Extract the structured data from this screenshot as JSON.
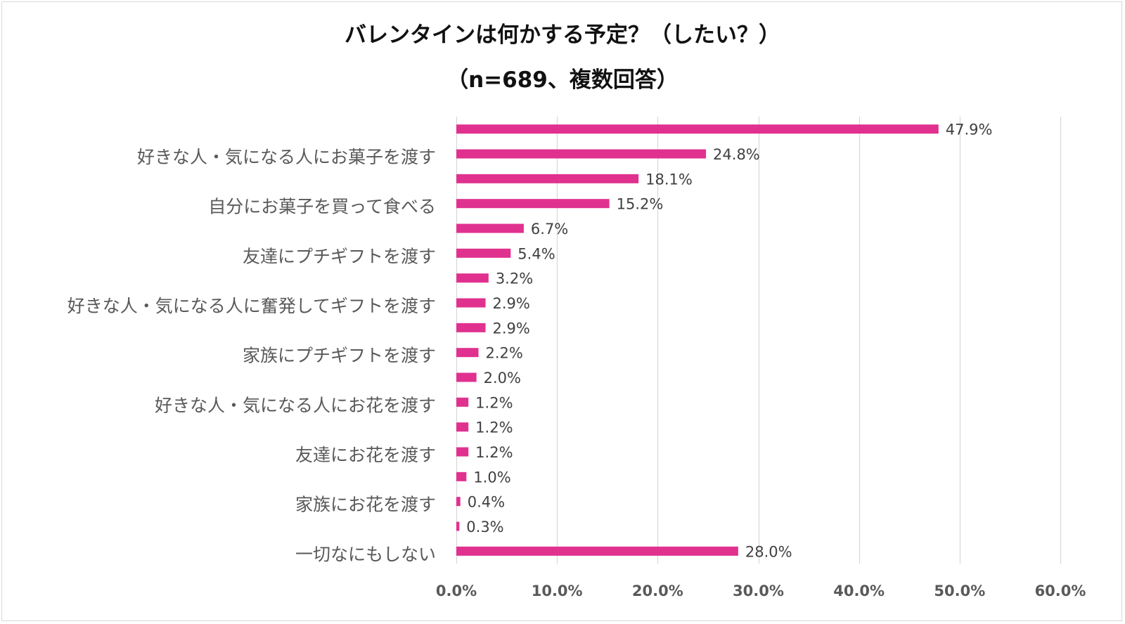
{
  "chart_data": {
    "type": "bar",
    "orientation": "horizontal",
    "title": "バレンタインは何かする予定？（したい？）",
    "subtitle": "（n=689、複数回答）",
    "xlabel": "",
    "ylabel": "",
    "xlim": [
      0,
      60
    ],
    "grid": true,
    "legend": "none",
    "bar_color": "#e0318f",
    "x_ticks": [
      "0.0%",
      "10.0%",
      "20.0%",
      "30.0%",
      "40.0%",
      "50.0%",
      "60.0%"
    ],
    "x_tick_values": [
      0,
      10,
      20,
      30,
      40,
      50,
      60
    ],
    "category_labels_shown": [
      {
        "bar_index": 1,
        "label": "好きな人・気になる人にお菓子を渡す"
      },
      {
        "bar_index": 3,
        "label": "自分にお菓子を買って食べる"
      },
      {
        "bar_index": 5,
        "label": "友達にプチギフトを渡す"
      },
      {
        "bar_index": 7,
        "label": "好きな人・気になる人に奮発してギフトを渡す"
      },
      {
        "bar_index": 9,
        "label": "家族にプチギフトを渡す"
      },
      {
        "bar_index": 11,
        "label": "好きな人・気になる人にお花を渡す"
      },
      {
        "bar_index": 13,
        "label": "友達にお花を渡す"
      },
      {
        "bar_index": 15,
        "label": "家族にお花を渡す"
      },
      {
        "bar_index": 17,
        "label": "一切なにもしない"
      }
    ],
    "values": [
      47.9,
      24.8,
      18.1,
      15.2,
      6.7,
      5.4,
      3.2,
      2.9,
      2.9,
      2.2,
      2.0,
      1.2,
      1.2,
      1.2,
      1.0,
      0.4,
      0.3,
      28.0
    ],
    "data_labels": [
      "47.9%",
      "24.8%",
      "18.1%",
      "15.2%",
      "6.7%",
      "5.4%",
      "3.2%",
      "2.9%",
      "2.9%",
      "2.2%",
      "2.0%",
      "1.2%",
      "1.2%",
      "1.2%",
      "1.0%",
      "0.4%",
      "0.3%",
      "28.0%"
    ]
  }
}
